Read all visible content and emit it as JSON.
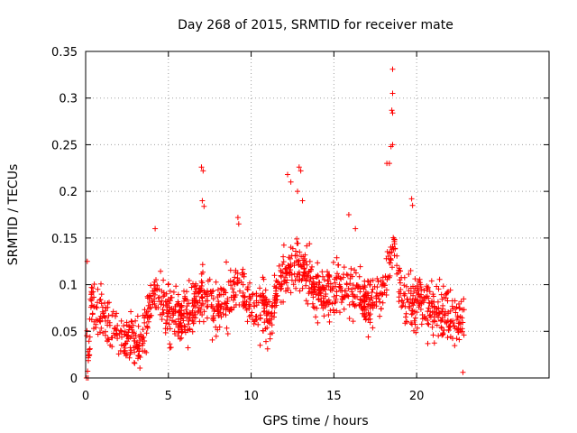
{
  "chart_data": {
    "type": "scatter",
    "title": "Day 268 of 2015, SRMTID for receiver mate",
    "xlabel": "GPS time / hours",
    "ylabel": "SRMTID / TECUs",
    "xlim": [
      0,
      28
    ],
    "ylim": [
      0,
      0.35
    ],
    "xticks": [
      0,
      5,
      10,
      15,
      20
    ],
    "xtick_labels": [
      "0",
      "5",
      "10",
      "15",
      "20"
    ],
    "yticks": [
      0,
      0.05,
      0.1,
      0.15,
      0.2,
      0.25,
      0.3,
      0.35
    ],
    "ytick_labels": [
      "0",
      "0.05",
      "0.1",
      "0.15",
      "0.2",
      "0.25",
      "0.3",
      "0.35"
    ],
    "grid": true,
    "marker": "plus",
    "color": "#ff0000",
    "series": [
      {
        "name": "SRMTID",
        "trend": [
          {
            "x": 0.1,
            "y": 0.0
          },
          {
            "x": 0.3,
            "y": 0.075
          },
          {
            "x": 0.8,
            "y": 0.072
          },
          {
            "x": 1.5,
            "y": 0.055
          },
          {
            "x": 2.5,
            "y": 0.042
          },
          {
            "x": 3.3,
            "y": 0.038
          },
          {
            "x": 3.8,
            "y": 0.07
          },
          {
            "x": 4.2,
            "y": 0.09
          },
          {
            "x": 5.0,
            "y": 0.07
          },
          {
            "x": 6.0,
            "y": 0.065
          },
          {
            "x": 7.0,
            "y": 0.09
          },
          {
            "x": 8.0,
            "y": 0.075
          },
          {
            "x": 9.2,
            "y": 0.1
          },
          {
            "x": 10.0,
            "y": 0.08
          },
          {
            "x": 11.0,
            "y": 0.065
          },
          {
            "x": 12.0,
            "y": 0.11
          },
          {
            "x": 13.0,
            "y": 0.12
          },
          {
            "x": 14.0,
            "y": 0.09
          },
          {
            "x": 15.0,
            "y": 0.095
          },
          {
            "x": 16.0,
            "y": 0.1
          },
          {
            "x": 17.0,
            "y": 0.08
          },
          {
            "x": 18.0,
            "y": 0.09
          },
          {
            "x": 18.6,
            "y": 0.15
          },
          {
            "x": 19.0,
            "y": 0.09
          },
          {
            "x": 20.0,
            "y": 0.08
          },
          {
            "x": 21.0,
            "y": 0.075
          },
          {
            "x": 22.0,
            "y": 0.07
          },
          {
            "x": 22.8,
            "y": 0.055
          }
        ],
        "spread": 0.028,
        "count": 1400,
        "x_range": [
          0.05,
          22.9
        ],
        "peaks": [
          {
            "x": 0.1,
            "y": 0.125
          },
          {
            "x": 4.2,
            "y": 0.16
          },
          {
            "x": 7.0,
            "y": 0.226
          },
          {
            "x": 7.1,
            "y": 0.222
          },
          {
            "x": 7.05,
            "y": 0.19
          },
          {
            "x": 7.15,
            "y": 0.184
          },
          {
            "x": 9.2,
            "y": 0.172
          },
          {
            "x": 9.25,
            "y": 0.165
          },
          {
            "x": 12.2,
            "y": 0.218
          },
          {
            "x": 12.4,
            "y": 0.21
          },
          {
            "x": 12.9,
            "y": 0.226
          },
          {
            "x": 13.0,
            "y": 0.222
          },
          {
            "x": 12.8,
            "y": 0.2
          },
          {
            "x": 13.1,
            "y": 0.19
          },
          {
            "x": 15.9,
            "y": 0.175
          },
          {
            "x": 16.3,
            "y": 0.16
          },
          {
            "x": 18.2,
            "y": 0.23
          },
          {
            "x": 18.35,
            "y": 0.23
          },
          {
            "x": 18.45,
            "y": 0.248
          },
          {
            "x": 18.55,
            "y": 0.25
          },
          {
            "x": 18.5,
            "y": 0.287
          },
          {
            "x": 18.55,
            "y": 0.284
          },
          {
            "x": 18.55,
            "y": 0.305
          },
          {
            "x": 18.55,
            "y": 0.331
          },
          {
            "x": 19.7,
            "y": 0.192
          },
          {
            "x": 19.75,
            "y": 0.185
          },
          {
            "x": 0.05,
            "y": 0.0
          },
          {
            "x": 0.15,
            "y": 0.0
          },
          {
            "x": 22.8,
            "y": 0.006
          }
        ]
      }
    ]
  }
}
